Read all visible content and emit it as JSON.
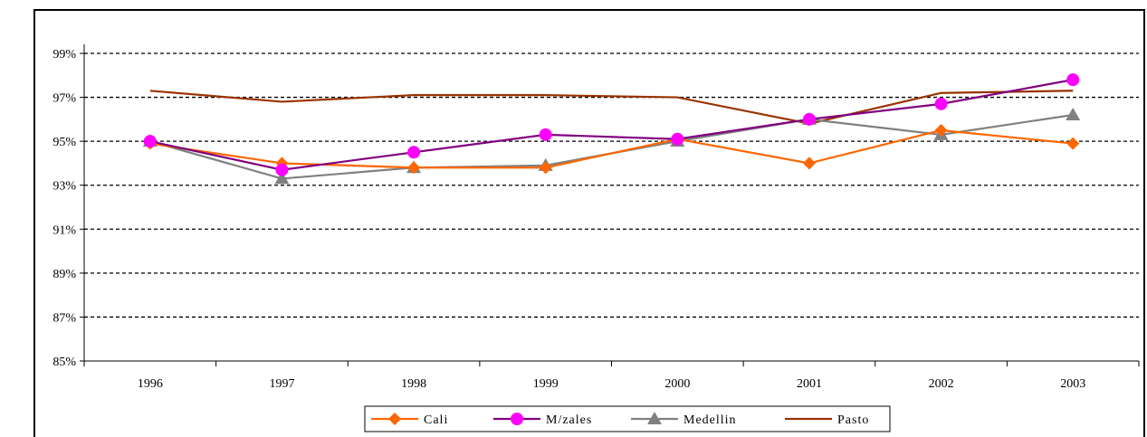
{
  "chart_data": {
    "type": "line",
    "categories": [
      "1996",
      "1997",
      "1998",
      "1999",
      "2000",
      "2001",
      "2002",
      "2003"
    ],
    "ylim": [
      0.85,
      0.99
    ],
    "yticks": [
      0.85,
      0.87,
      0.89,
      0.91,
      0.93,
      0.95,
      0.97,
      0.99
    ],
    "ytick_labels": [
      "85%",
      "87%",
      "89%",
      "91%",
      "93%",
      "95%",
      "97%",
      "99%"
    ],
    "grid": "horizontal dashed",
    "legend_position": "bottom",
    "series": [
      {
        "name": "Cali",
        "color": "#FF6600",
        "marker": "diamond",
        "values": [
          0.949,
          0.94,
          0.938,
          0.938,
          0.951,
          0.94,
          0.955,
          0.949
        ]
      },
      {
        "name": "M/zales",
        "color": "#800080",
        "marker_color": "#FF00FF",
        "marker": "circle",
        "values": [
          0.95,
          0.937,
          0.945,
          0.953,
          0.951,
          0.96,
          0.967,
          0.978
        ]
      },
      {
        "name": "Medellin",
        "color": "#808080",
        "marker": "triangle",
        "values": [
          0.95,
          0.933,
          0.938,
          0.939,
          0.95,
          0.96,
          0.953,
          0.962
        ]
      },
      {
        "name": "Pasto",
        "color": "#993300",
        "marker": "none",
        "values": [
          0.973,
          0.968,
          0.971,
          0.971,
          0.97,
          0.958,
          0.972,
          0.973
        ]
      }
    ]
  }
}
